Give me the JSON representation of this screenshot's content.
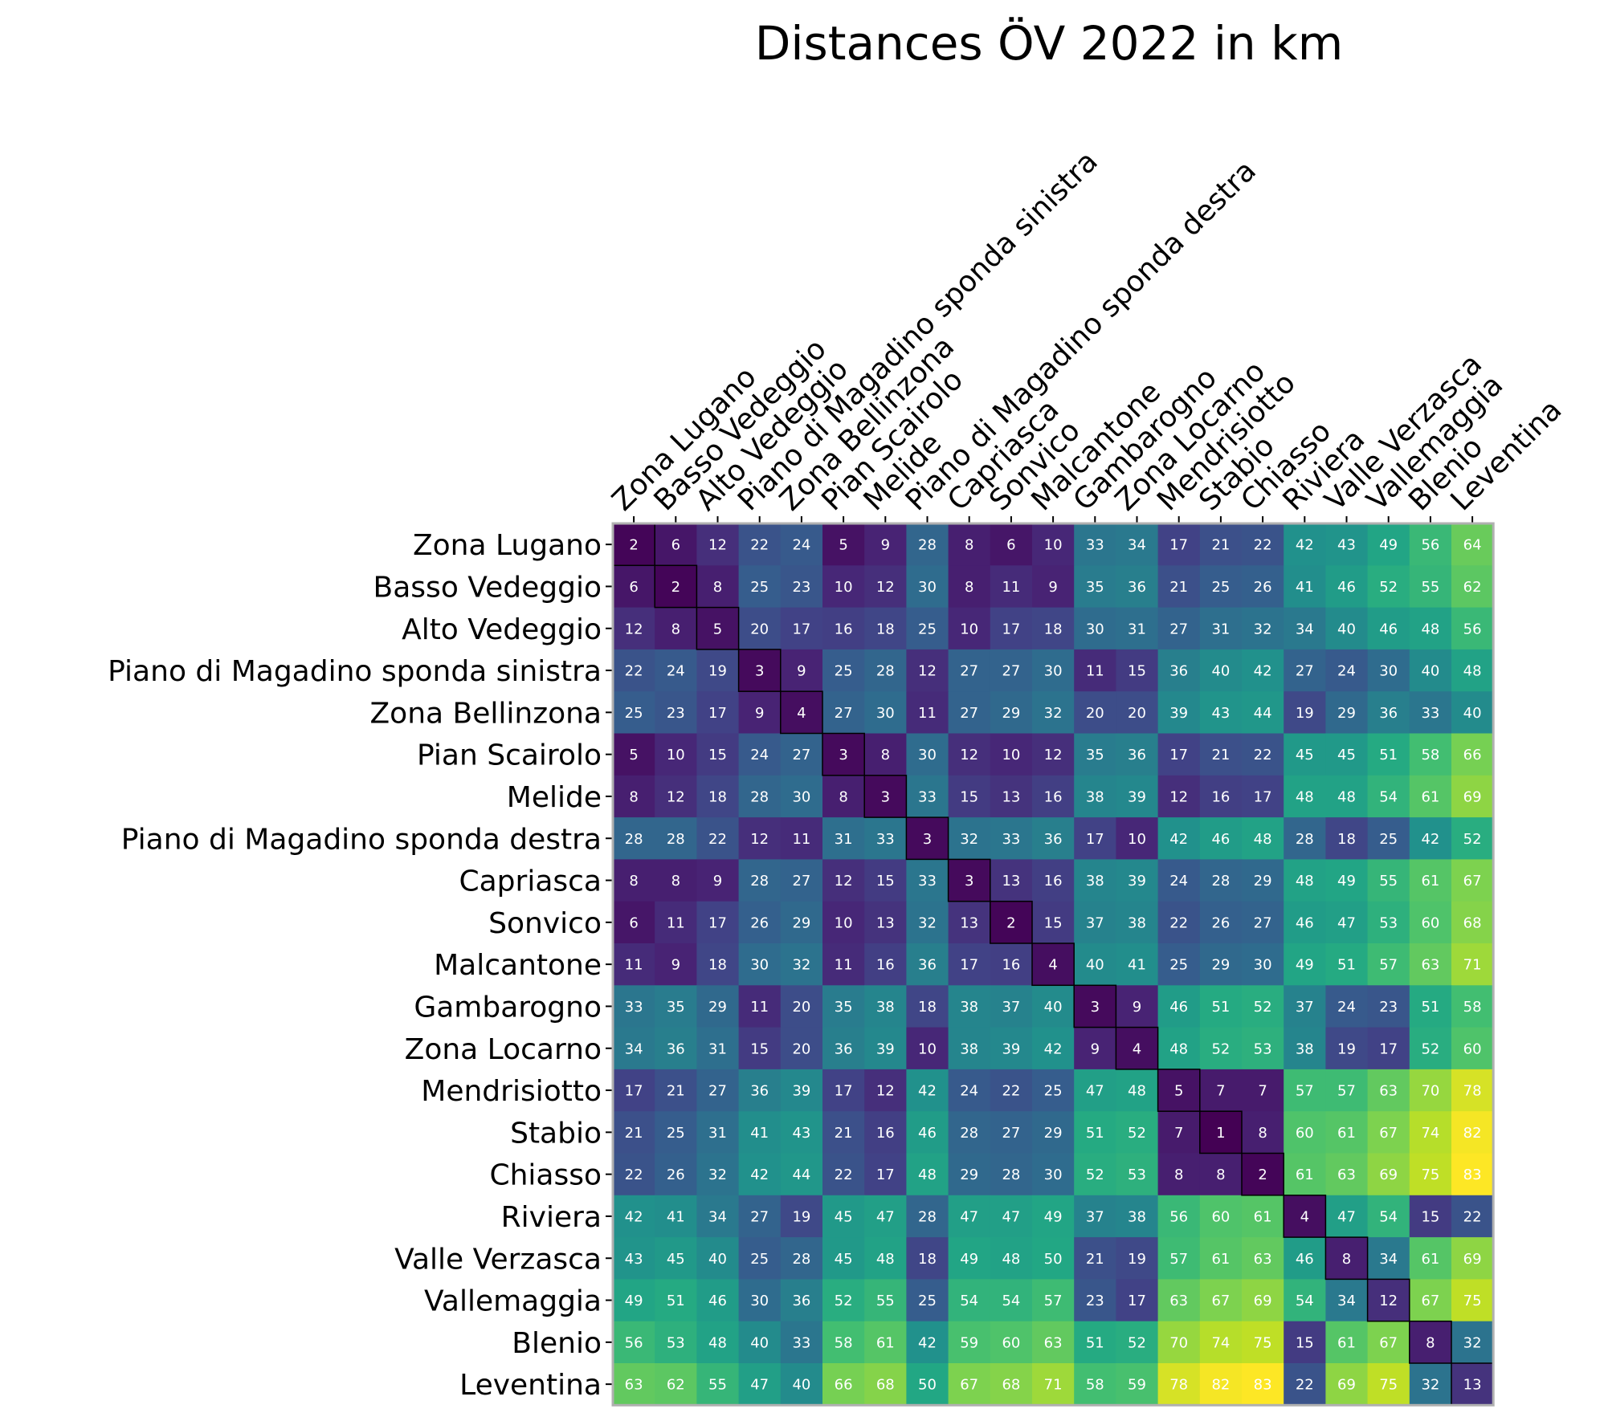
{
  "chart_data": {
    "type": "heatmap",
    "title": "Distances ÖV 2022 in km",
    "colormap": "viridis",
    "frame_color": "#b0b0b0",
    "diagonal_outline_color": "#000000",
    "color_range": [
      1,
      83
    ],
    "labels": [
      "Zona Lugano",
      "Basso Vedeggio",
      "Alto Vedeggio",
      "Piano di Magadino sponda sinistra",
      "Zona Bellinzona",
      "Pian Scairolo",
      "Melide",
      "Piano di Magadino sponda destra",
      "Capriasca",
      "Sonvico",
      "Malcantone",
      "Gambarogno",
      "Zona Locarno",
      "Mendrisiotto",
      "Stabio",
      "Chiasso",
      "Riviera",
      "Valle Verzasca",
      "Vallemaggia",
      "Blenio",
      "Leventina"
    ],
    "values": [
      [
        2,
        6,
        12,
        22,
        24,
        5,
        9,
        28,
        8,
        6,
        10,
        33,
        34,
        17,
        21,
        22,
        42,
        43,
        49,
        56,
        64
      ],
      [
        6,
        2,
        8,
        25,
        23,
        10,
        12,
        30,
        8,
        11,
        9,
        35,
        36,
        21,
        25,
        26,
        41,
        46,
        52,
        55,
        62
      ],
      [
        12,
        8,
        5,
        20,
        17,
        16,
        18,
        25,
        10,
        17,
        18,
        30,
        31,
        27,
        31,
        32,
        34,
        40,
        46,
        48,
        56
      ],
      [
        22,
        24,
        19,
        3,
        9,
        25,
        28,
        12,
        27,
        27,
        30,
        11,
        15,
        36,
        40,
        42,
        27,
        24,
        30,
        40,
        48
      ],
      [
        25,
        23,
        17,
        9,
        4,
        27,
        30,
        11,
        27,
        29,
        32,
        20,
        20,
        39,
        43,
        44,
        19,
        29,
        36,
        33,
        40
      ],
      [
        5,
        10,
        15,
        24,
        27,
        3,
        8,
        30,
        12,
        10,
        12,
        35,
        36,
        17,
        21,
        22,
        45,
        45,
        51,
        58,
        66
      ],
      [
        8,
        12,
        18,
        28,
        30,
        8,
        3,
        33,
        15,
        13,
        16,
        38,
        39,
        12,
        16,
        17,
        48,
        48,
        54,
        61,
        69
      ],
      [
        28,
        28,
        22,
        12,
        11,
        31,
        33,
        3,
        32,
        33,
        36,
        17,
        10,
        42,
        46,
        48,
        28,
        18,
        25,
        42,
        52
      ],
      [
        8,
        8,
        9,
        28,
        27,
        12,
        15,
        33,
        3,
        13,
        16,
        38,
        39,
        24,
        28,
        29,
        48,
        49,
        55,
        61,
        67
      ],
      [
        6,
        11,
        17,
        26,
        29,
        10,
        13,
        32,
        13,
        2,
        15,
        37,
        38,
        22,
        26,
        27,
        46,
        47,
        53,
        60,
        68
      ],
      [
        11,
        9,
        18,
        30,
        32,
        11,
        16,
        36,
        17,
        16,
        4,
        40,
        41,
        25,
        29,
        30,
        49,
        51,
        57,
        63,
        71
      ],
      [
        33,
        35,
        29,
        11,
        20,
        35,
        38,
        18,
        38,
        37,
        40,
        3,
        9,
        46,
        51,
        52,
        37,
        24,
        23,
        51,
        58
      ],
      [
        34,
        36,
        31,
        15,
        20,
        36,
        39,
        10,
        38,
        39,
        42,
        9,
        4,
        48,
        52,
        53,
        38,
        19,
        17,
        52,
        60
      ],
      [
        17,
        21,
        27,
        36,
        39,
        17,
        12,
        42,
        24,
        22,
        25,
        47,
        48,
        5,
        7,
        7,
        57,
        57,
        63,
        70,
        78
      ],
      [
        21,
        25,
        31,
        41,
        43,
        21,
        16,
        46,
        28,
        27,
        29,
        51,
        52,
        7,
        1,
        8,
        60,
        61,
        67,
        74,
        82
      ],
      [
        22,
        26,
        32,
        42,
        44,
        22,
        17,
        48,
        29,
        28,
        30,
        52,
        53,
        8,
        8,
        2,
        61,
        63,
        69,
        75,
        83
      ],
      [
        42,
        41,
        34,
        27,
        19,
        45,
        47,
        28,
        47,
        47,
        49,
        37,
        38,
        56,
        60,
        61,
        4,
        47,
        54,
        15,
        22
      ],
      [
        43,
        45,
        40,
        25,
        28,
        45,
        48,
        18,
        49,
        48,
        50,
        21,
        19,
        57,
        61,
        63,
        46,
        8,
        34,
        61,
        69
      ],
      [
        49,
        51,
        46,
        30,
        36,
        52,
        55,
        25,
        54,
        54,
        57,
        23,
        17,
        63,
        67,
        69,
        54,
        34,
        12,
        67,
        75
      ],
      [
        56,
        53,
        48,
        40,
        33,
        58,
        61,
        42,
        59,
        60,
        63,
        51,
        52,
        70,
        74,
        75,
        15,
        61,
        67,
        8,
        32
      ],
      [
        63,
        62,
        55,
        47,
        40,
        66,
        68,
        50,
        67,
        68,
        71,
        58,
        59,
        78,
        82,
        83,
        22,
        69,
        75,
        32,
        13
      ]
    ]
  }
}
